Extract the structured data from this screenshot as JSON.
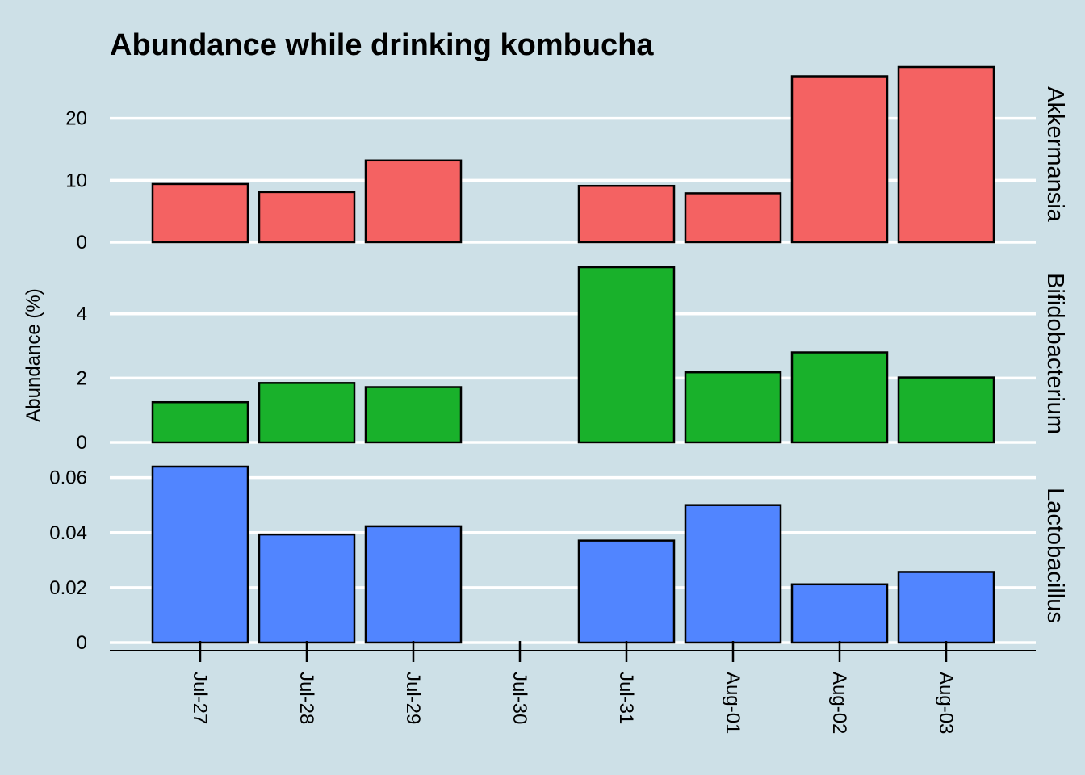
{
  "chart_data": {
    "type": "bar",
    "title": "Abundance while drinking kombucha",
    "ylabel": "Abundance (%)",
    "xlabel": "",
    "categories": [
      "Jul-27",
      "Jul-28",
      "Jul-29",
      "Jul-30",
      "Jul-31",
      "Aug-01",
      "Aug-02",
      "Aug-03"
    ],
    "grid": true,
    "legend": "none",
    "facets": [
      {
        "name": "Akkermansia",
        "color": "#f46262",
        "ylim": [
          0,
          28.3
        ],
        "yticks": [
          {
            "value": 0,
            "label": "0"
          },
          {
            "value": 10,
            "label": "10"
          },
          {
            "value": 20,
            "label": "20"
          }
        ],
        "values": [
          9.4,
          8.1,
          13.2,
          null,
          9.1,
          7.9,
          26.8,
          28.3
        ]
      },
      {
        "name": "Bifidobacterium",
        "color": "#19b12b",
        "ylim": [
          0,
          5.45
        ],
        "yticks": [
          {
            "value": 0,
            "label": "0"
          },
          {
            "value": 2,
            "label": "2"
          },
          {
            "value": 4,
            "label": "4"
          }
        ],
        "values": [
          1.25,
          1.85,
          1.72,
          null,
          5.45,
          2.18,
          2.8,
          2.02
        ]
      },
      {
        "name": "Lactobacillus",
        "color": "#5185ff",
        "ylim": [
          0,
          0.064
        ],
        "yticks": [
          {
            "value": 0,
            "label": "0"
          },
          {
            "value": 0.02,
            "label": "0.02"
          },
          {
            "value": 0.04,
            "label": "0.04"
          },
          {
            "value": 0.06,
            "label": "0.06"
          }
        ],
        "values": [
          0.064,
          0.0393,
          0.0423,
          null,
          0.0371,
          0.05,
          0.0212,
          0.0257
        ]
      }
    ]
  }
}
